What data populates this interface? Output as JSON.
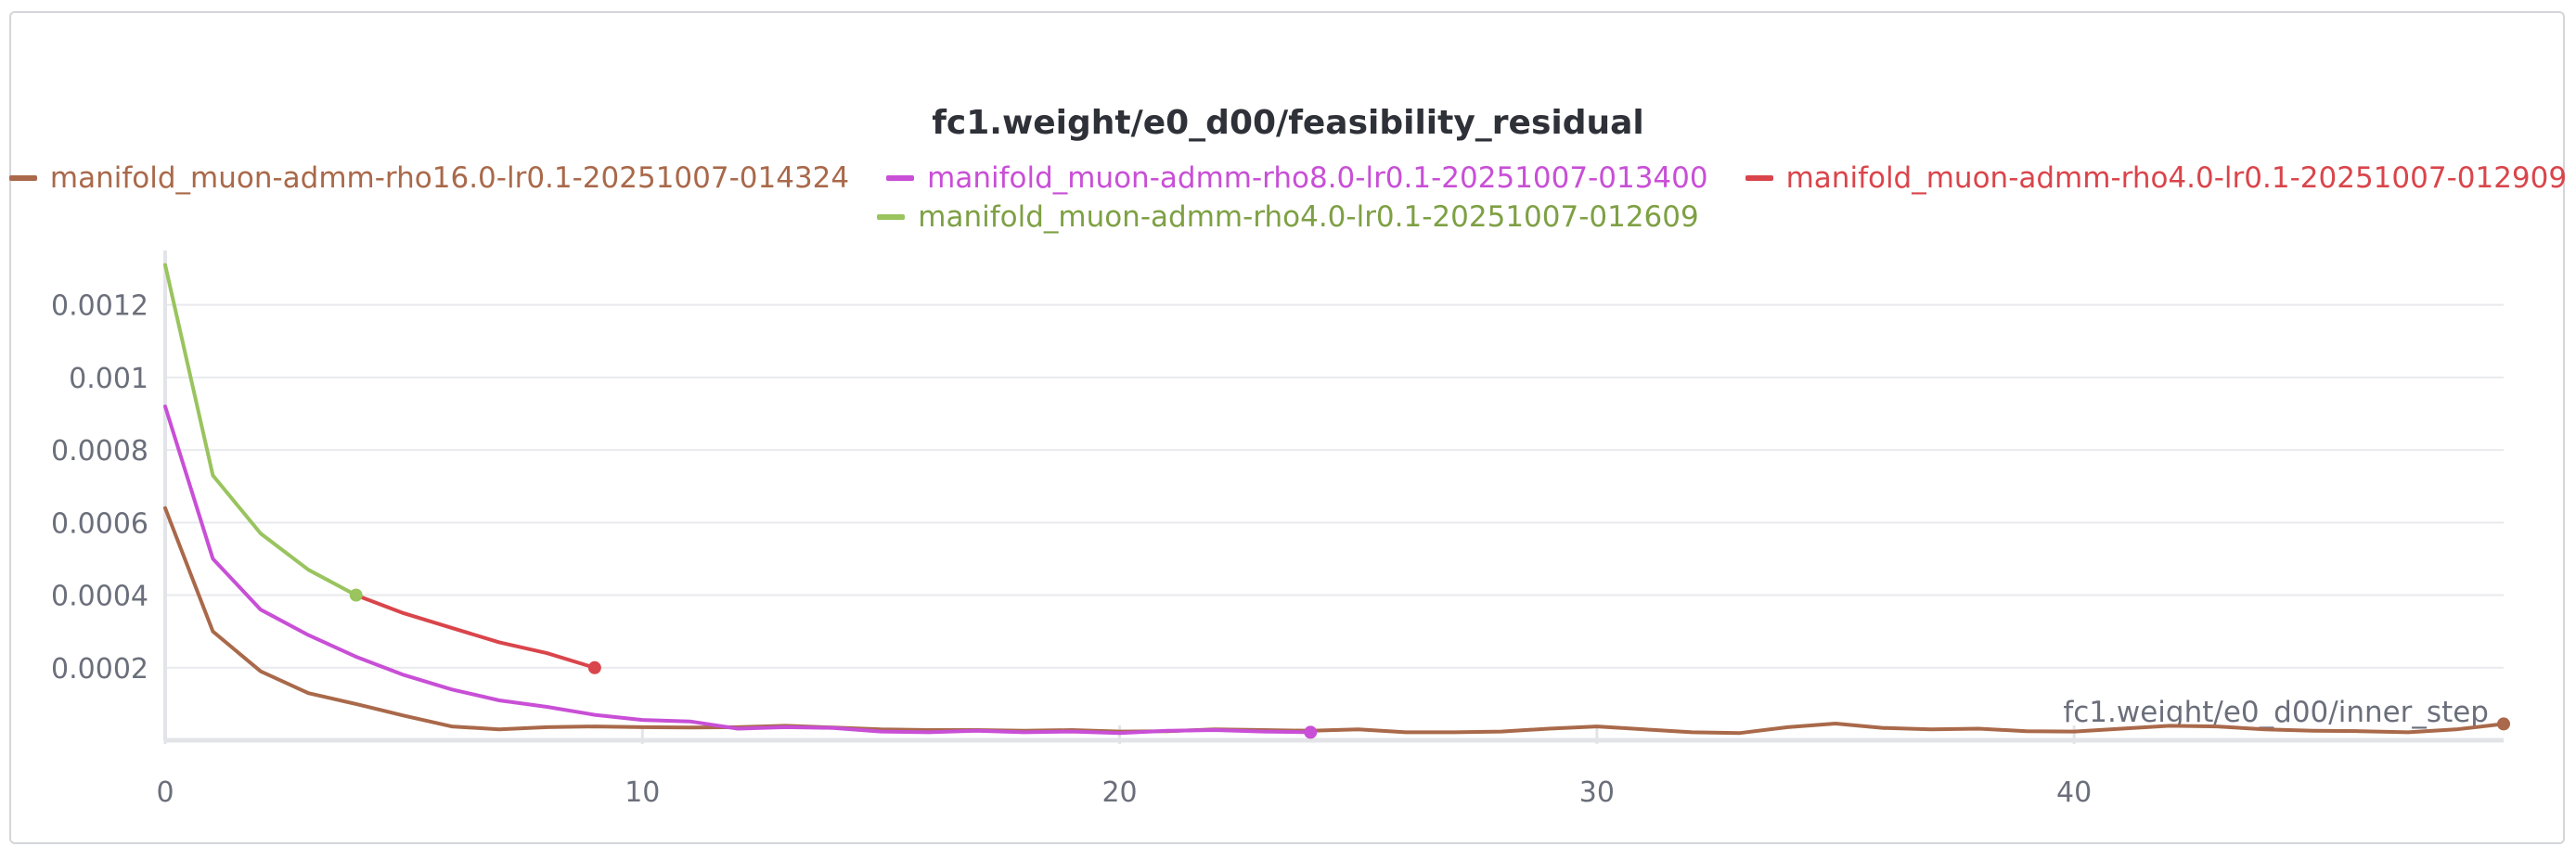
{
  "chart_data": {
    "type": "line",
    "title": "fc1.weight/e0_d00/feasibility_residual",
    "xlabel": "fc1.weight/e0_d00/inner_step",
    "ylabel": "",
    "xlim": [
      0,
      49
    ],
    "ylim": [
      0,
      0.00135
    ],
    "x_ticks": [
      0,
      10,
      20,
      30,
      40
    ],
    "x_tick_labels": [
      "0",
      "10",
      "20",
      "30",
      "40"
    ],
    "y_ticks": [
      0.0002,
      0.0004,
      0.0006,
      0.0008,
      0.001,
      0.0012
    ],
    "y_tick_labels": [
      "0.0002",
      "0.0004",
      "0.0006",
      "0.0008",
      "0.001",
      "0.0012"
    ],
    "grid": true,
    "legend_position": "top",
    "series": [
      {
        "name": "manifold_muon-admm-rho16.0-lr0.1-20251007-014324",
        "color": "#a9694a",
        "x": [
          0,
          1,
          2,
          3,
          4,
          5,
          6,
          7,
          8,
          9,
          10,
          11,
          12,
          13,
          14,
          15,
          16,
          17,
          18,
          19,
          20,
          21,
          22,
          23,
          24,
          25,
          26,
          27,
          28,
          29,
          30,
          31,
          32,
          33,
          34,
          35,
          36,
          37,
          38,
          39,
          40,
          41,
          42,
          43,
          44,
          45,
          46,
          47,
          48,
          49
        ],
        "y": [
          0.00064,
          0.0003,
          0.00019,
          0.00013,
          0.0001,
          6.8e-05,
          3.8e-05,
          3e-05,
          3.6e-05,
          3.8e-05,
          3.6e-05,
          3.5e-05,
          3.6e-05,
          4e-05,
          3.5e-05,
          3e-05,
          2.8e-05,
          2.8e-05,
          2.6e-05,
          2.8e-05,
          2.4e-05,
          2.5e-05,
          3e-05,
          2.8e-05,
          2.6e-05,
          3e-05,
          2.2e-05,
          2.2e-05,
          2.4e-05,
          3.2e-05,
          3.8e-05,
          3e-05,
          2.2e-05,
          2e-05,
          3.6e-05,
          4.6e-05,
          3.4e-05,
          3e-05,
          3.2e-05,
          2.5e-05,
          2.4e-05,
          3.2e-05,
          4e-05,
          3.8e-05,
          3e-05,
          2.6e-05,
          2.5e-05,
          2.2e-05,
          3e-05,
          4.5e-05
        ]
      },
      {
        "name": "manifold_muon-admm-rho8.0-lr0.1-20251007-013400",
        "color": "#c84fd6",
        "x": [
          0,
          1,
          2,
          3,
          4,
          5,
          6,
          7,
          8,
          9,
          10,
          11,
          12,
          13,
          14,
          15,
          16,
          17,
          18,
          19,
          20,
          21,
          22,
          23,
          24
        ],
        "y": [
          0.00092,
          0.0005,
          0.00036,
          0.00029,
          0.00023,
          0.00018,
          0.00014,
          0.00011,
          9.2e-05,
          7e-05,
          5.6e-05,
          5.2e-05,
          3.2e-05,
          3.6e-05,
          3.4e-05,
          2.4e-05,
          2.2e-05,
          2.6e-05,
          2.2e-05,
          2.4e-05,
          2e-05,
          2.6e-05,
          2.8e-05,
          2.4e-05,
          2.2e-05
        ]
      },
      {
        "name": "manifold_muon-admm-rho4.0-lr0.1-20251007-012909",
        "color": "#d9454b",
        "x": [
          4,
          5,
          6,
          7,
          8,
          9
        ],
        "y": [
          0.0004,
          0.00035,
          0.00031,
          0.00027,
          0.00024,
          0.0002
        ]
      },
      {
        "name": "manifold_muon-admm-rho4.0-lr0.1-20251007-012609",
        "color": "#99c45e",
        "x": [
          0,
          1,
          2,
          3,
          4
        ],
        "y": [
          0.00131,
          0.00073,
          0.00057,
          0.00047,
          0.0004
        ]
      }
    ]
  }
}
